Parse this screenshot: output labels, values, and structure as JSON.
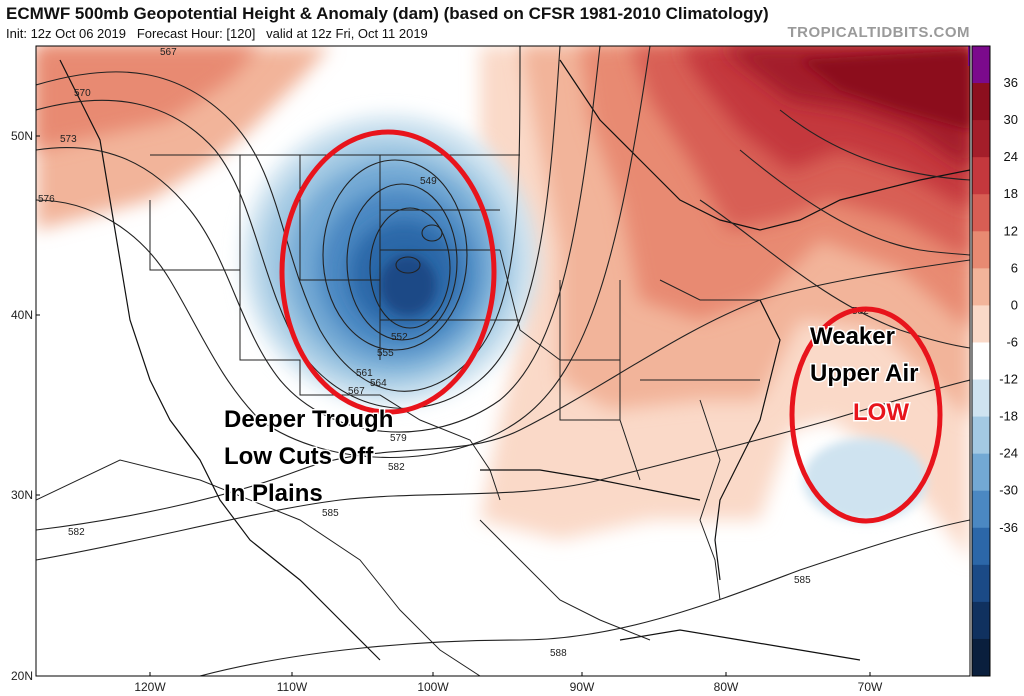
{
  "header": {
    "title": "ECMWF 500mb Geopotential Height & Anomaly (dam) (based on CFSR 1981-2010 Climatology)",
    "init": "Init: 12z Oct 06 2019",
    "forecast_hour": "Forecast Hour: [120]",
    "valid": "valid at 12z Fri, Oct 11 2019",
    "brand": "TROPICALTIDBITS.COM"
  },
  "latitude_labels": [
    "50N",
    "40N",
    "30N",
    "20N"
  ],
  "longitude_labels": [
    "120W",
    "110W",
    "100W",
    "90W",
    "80W",
    "70W"
  ],
  "colorbar": {
    "ticks": [
      "36",
      "30",
      "24",
      "18",
      "12",
      "6",
      "0",
      "-6",
      "-12",
      "-18",
      "-24",
      "-30",
      "-36"
    ],
    "colors": [
      "#7b0a8c",
      "#8c0f1e",
      "#a31e2a",
      "#c4383d",
      "#d85e54",
      "#e88a72",
      "#f2b49a",
      "#fad9c8",
      "#ffffff",
      "#cfe3f0",
      "#a3c9e3",
      "#73a9d4",
      "#4b88c2",
      "#2c67a8",
      "#1b4a86",
      "#10315f",
      "#0a1f3d"
    ]
  },
  "contour_labels": [
    {
      "name": "567",
      "text": "567"
    },
    {
      "name": "570",
      "text": "570"
    },
    {
      "name": "573",
      "text": "573"
    },
    {
      "name": "576",
      "text": "576"
    },
    {
      "name": "549",
      "text": "549"
    },
    {
      "name": "552",
      "text": "552"
    },
    {
      "name": "555",
      "text": "555"
    },
    {
      "name": "561",
      "text": "561"
    },
    {
      "name": "564",
      "text": "564"
    },
    {
      "name": "567b",
      "text": "567"
    },
    {
      "name": "579",
      "text": "579"
    },
    {
      "name": "582",
      "text": "582"
    },
    {
      "name": "582b",
      "text": "582"
    },
    {
      "name": "585",
      "text": "585"
    },
    {
      "name": "582c",
      "text": "582"
    },
    {
      "name": "585b",
      "text": "585"
    },
    {
      "name": "588",
      "text": "588"
    }
  ],
  "annotations": {
    "trough_line1": "Deeper Trough",
    "trough_line2": "Low Cuts Off",
    "trough_line3": "In Plains",
    "weak_line1": "Weaker",
    "weak_line2": "Upper Air",
    "weak_low": "LOW"
  },
  "colors": {
    "annotation_circle": "#e8141c",
    "low_text": "#e8141c",
    "contour": "#222222"
  }
}
